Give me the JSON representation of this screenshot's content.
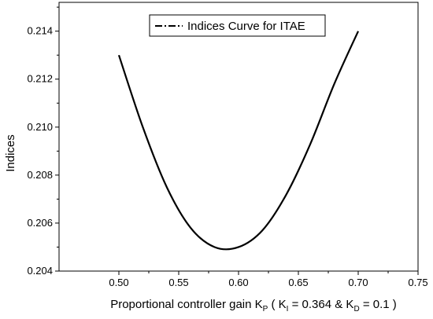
{
  "chart_data": {
    "type": "line",
    "xlabel": {
      "prefix": "Proportional controller gain K",
      "sub": "P",
      "part2": " ( K",
      "sub2": "I",
      "part3": " = 0.364 & K",
      "sub3": "D",
      "part4": " = 0.1 )"
    },
    "ylabel": "Indices",
    "xlim": [
      0.45,
      0.75
    ],
    "ylim": [
      0.204,
      0.2152
    ],
    "x_ticks": [
      "0.50",
      "0.55",
      "0.60",
      "0.65",
      "0.70",
      "0.75"
    ],
    "y_ticks": [
      "0.204",
      "0.206",
      "0.208",
      "0.210",
      "0.212",
      "0.214"
    ],
    "legend": {
      "position": "top-right",
      "label": "Indices Curve for ITAE"
    },
    "series": [
      {
        "name": "Indices Curve for ITAE",
        "color": "#000000",
        "x": [
          0.5,
          0.52,
          0.54,
          0.56,
          0.58,
          0.6,
          0.62,
          0.64,
          0.66,
          0.68,
          0.7
        ],
        "y": [
          0.213,
          0.21,
          0.2075,
          0.2058,
          0.205,
          0.205,
          0.2057,
          0.2072,
          0.2093,
          0.2118,
          0.214
        ]
      }
    ]
  }
}
